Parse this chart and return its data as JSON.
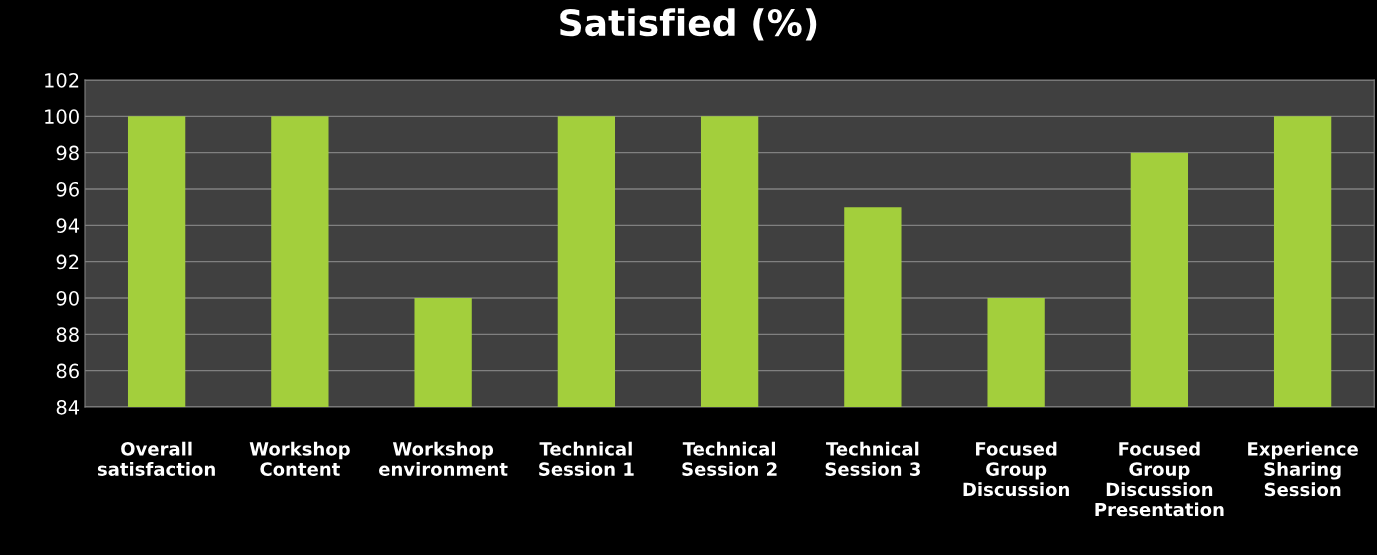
{
  "chart_data": {
    "type": "bar",
    "title": "Satisfied (%)",
    "categories": [
      "Overall\nsatisfaction",
      "Workshop\nContent",
      "Workshop\nenvironment",
      "Technical\nSession 1",
      "Technical\nSession 2",
      "Technical\nSession 3",
      "Focused\nGroup\nDiscussion",
      "Focused\nGroup\nDiscussion\nPresentation",
      "Experience\nSharing\nSession"
    ],
    "values": [
      100,
      100,
      90,
      100,
      100,
      95,
      90,
      98,
      100
    ],
    "color": "#a3cf3c",
    "ylim": [
      84,
      102
    ],
    "yticks": [
      84,
      86,
      88,
      90,
      92,
      94,
      96,
      98,
      100,
      102
    ],
    "grid": "y"
  }
}
